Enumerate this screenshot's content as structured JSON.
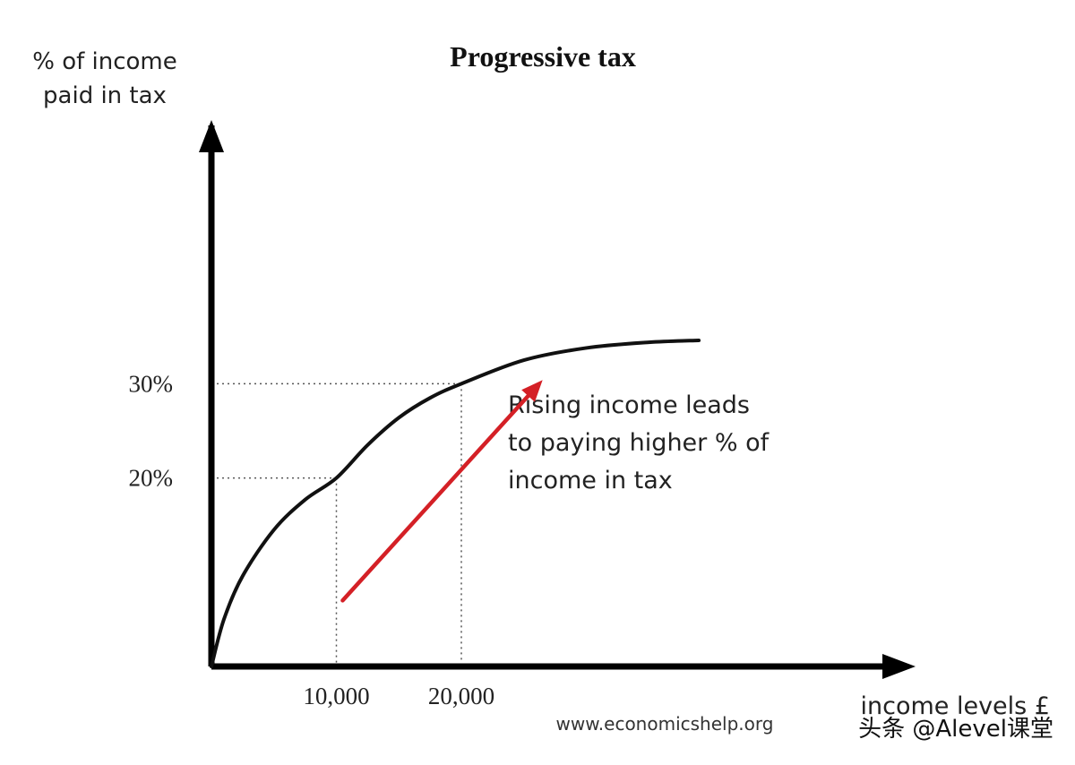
{
  "chart_data": {
    "type": "line",
    "title": "Progressive tax",
    "ylabel_lines": [
      "% of income",
      "paid in tax"
    ],
    "xlabel": "income levels £",
    "x_ticks": [
      "10,000",
      "20,000"
    ],
    "y_ticks": [
      "20%",
      "30%"
    ],
    "series": [
      {
        "x": [
          0,
          1000,
          2500,
          5000,
          7500,
          10000,
          12500,
          15000,
          17500,
          20000,
          25000,
          30000,
          35000,
          39000
        ],
        "y": [
          0,
          5,
          9.6,
          14.5,
          17.7,
          20,
          23.5,
          26.4,
          28.5,
          30,
          32.5,
          33.8,
          34.4,
          34.6
        ]
      }
    ],
    "guides": [
      {
        "x": 10000,
        "y": 20
      },
      {
        "x": 20000,
        "y": 30
      }
    ],
    "arrow": {
      "from": [
        10500,
        7
      ],
      "to": [
        26500,
        30.4
      ],
      "color": "#d42026"
    },
    "annotation_lines": [
      "Rising income leads",
      "to paying higher % of",
      "income in tax"
    ],
    "source": "www.economicshelp.org",
    "watermark": "头条 @Alevel课堂",
    "colors": {
      "curve": "#111111",
      "arrow": "#d42026",
      "guides": "#555555",
      "axes": "#000000"
    }
  }
}
